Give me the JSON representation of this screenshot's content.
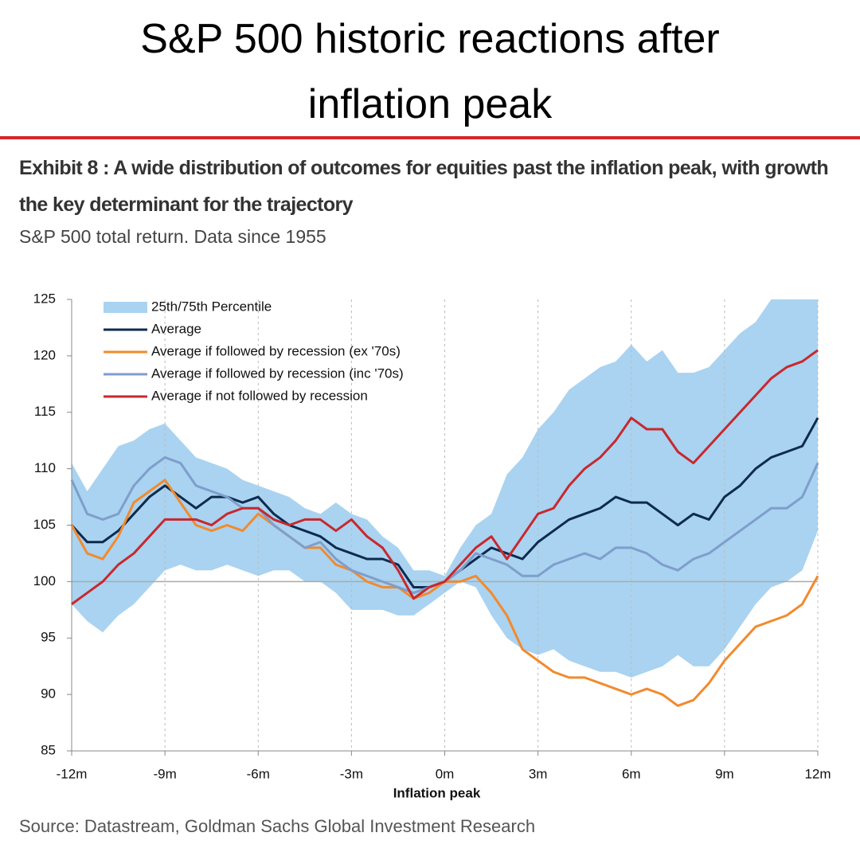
{
  "chart_data": {
    "type": "line",
    "title": "S&P 500 historic reactions after inflation peak",
    "exhibit_title": "Exhibit 8 : A wide distribution of outcomes for equities past the inflation peak, with growth the key determinant for the trajectory",
    "subtitle": "S&P 500 total return. Data since 1955",
    "source": "Source: Datastream, Goldman Sachs Global Investment Research",
    "x_label": "Inflation peak",
    "x": [
      -12,
      -11.5,
      -11,
      -10.5,
      -10,
      -9.5,
      -9,
      -8.5,
      -8,
      -7.5,
      -7,
      -6.5,
      -6,
      -5.5,
      -5,
      -4.5,
      -4,
      -3.5,
      -3,
      -2.5,
      -2,
      -1.5,
      -1,
      -0.5,
      0,
      0.5,
      1,
      1.5,
      2,
      2.5,
      3,
      3.5,
      4,
      4.5,
      5,
      5.5,
      6,
      6.5,
      7,
      7.5,
      8,
      8.5,
      9,
      9.5,
      10,
      10.5,
      11,
      11.5,
      12
    ],
    "xlim": [
      -12,
      12
    ],
    "xticks": [
      {
        "value": -12,
        "label": "-12m"
      },
      {
        "value": -9,
        "label": "-9m"
      },
      {
        "value": -6,
        "label": "-6m"
      },
      {
        "value": -3,
        "label": "-3m"
      },
      {
        "value": 0,
        "label": "0m"
      },
      {
        "value": 3,
        "label": "3m"
      },
      {
        "value": 6,
        "label": "6m"
      },
      {
        "value": 9,
        "label": "9m"
      },
      {
        "value": 12,
        "label": "12m"
      }
    ],
    "ylim": [
      85,
      125
    ],
    "yticks": [
      85,
      90,
      95,
      100,
      105,
      110,
      115,
      120,
      125
    ],
    "reference_line": 100,
    "grid": "x",
    "legend": "upper left",
    "series": [
      {
        "name": "25th/75th Percentile",
        "color": "#a9d3f0",
        "kind": "band",
        "low": [
          98,
          96.5,
          95.5,
          97,
          98,
          99.5,
          101,
          101.5,
          101,
          101,
          101.5,
          101,
          100.5,
          101,
          101,
          100,
          100,
          99,
          97.5,
          97.5,
          97.5,
          97,
          97,
          98,
          99,
          100,
          99.5,
          97,
          95,
          94,
          93.5,
          94,
          93,
          92.5,
          92,
          92,
          91.5,
          92,
          92.5,
          93.5,
          92.5,
          92.5,
          94,
          96,
          98,
          99.5,
          100,
          101,
          104.5
        ],
        "high": [
          110.5,
          108,
          110,
          112,
          112.5,
          113.5,
          114,
          112.5,
          111,
          110.5,
          110,
          109,
          108.5,
          108,
          107.5,
          106.5,
          106,
          107,
          106,
          105.5,
          104,
          103,
          101,
          101,
          100.5,
          103,
          105,
          106,
          109.5,
          111,
          113.5,
          115,
          117,
          118,
          119,
          119.5,
          121,
          119.5,
          120.5,
          118.5,
          118.5,
          119,
          120.5,
          122,
          123,
          125,
          125,
          125,
          125
        ]
      },
      {
        "name": "Average",
        "color": "#0d2b4e",
        "values": [
          105,
          103.5,
          103.5,
          104.5,
          106,
          107.5,
          108.5,
          107.5,
          106.5,
          107.5,
          107.5,
          107,
          107.5,
          106,
          105,
          104.5,
          104,
          103,
          102.5,
          102,
          102,
          101.5,
          99.5,
          99.5,
          100,
          101,
          102,
          103,
          102.5,
          102,
          103.5,
          104.5,
          105.5,
          106,
          106.5,
          107.5,
          107,
          107,
          106,
          105,
          106,
          105.5,
          107.5,
          108.5,
          110,
          111,
          111.5,
          112,
          114.5
        ]
      },
      {
        "name": "Average if followed by recession (ex '70s)",
        "color": "#f28a2e",
        "values": [
          105,
          102.5,
          102,
          104,
          107,
          108,
          109,
          107,
          105,
          104.5,
          105,
          104.5,
          106,
          105,
          104,
          103,
          103,
          101.5,
          101,
          100,
          99.5,
          99.5,
          98.5,
          99,
          100,
          100,
          100.5,
          99,
          97,
          94,
          93,
          92,
          91.5,
          91.5,
          91,
          90.5,
          90,
          90.5,
          90,
          89,
          89.5,
          91,
          93,
          94.5,
          96,
          96.5,
          97,
          98,
          100.5
        ]
      },
      {
        "name": "Average if followed by recession (inc '70s)",
        "color": "#7f9ecb",
        "values": [
          109,
          106,
          105.5,
          106,
          108.5,
          110,
          111,
          110.5,
          108.5,
          108,
          107.5,
          106.5,
          106.5,
          105,
          104,
          103,
          103.5,
          102,
          101,
          100.5,
          100,
          99.5,
          99,
          99.5,
          100,
          101,
          102.5,
          102,
          101.5,
          100.5,
          100.5,
          101.5,
          102,
          102.5,
          102,
          103,
          103,
          102.5,
          101.5,
          101,
          102,
          102.5,
          103.5,
          104.5,
          105.5,
          106.5,
          106.5,
          107.5,
          110.5
        ]
      },
      {
        "name": "Average if not followed by recession",
        "color": "#c8282e",
        "values": [
          98,
          99,
          100,
          101.5,
          102.5,
          104,
          105.5,
          105.5,
          105.5,
          105,
          106,
          106.5,
          106.5,
          105.5,
          105,
          105.5,
          105.5,
          104.5,
          105.5,
          104,
          103,
          101,
          98.5,
          99.5,
          100,
          101.5,
          103,
          104,
          102,
          104,
          106,
          106.5,
          108.5,
          110,
          111,
          112.5,
          114.5,
          113.5,
          113.5,
          111.5,
          110.5,
          112,
          113.5,
          115,
          116.5,
          118,
          119,
          119.5,
          120.5
        ]
      }
    ]
  }
}
